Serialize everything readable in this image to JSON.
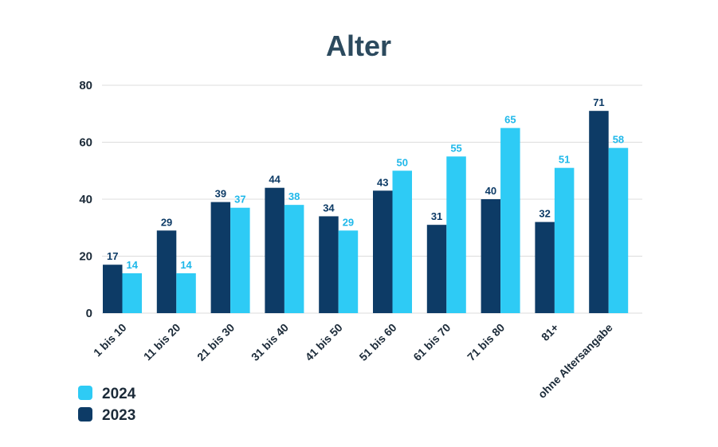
{
  "chart_data": {
    "type": "bar",
    "title": "Alter",
    "categories": [
      "1 bis 10",
      "11 bis 20",
      "21 bis 30",
      "31 bis 40",
      "41 bis 50",
      "51 bis 60",
      "61 bis 70",
      "71 bis 80",
      "81+",
      "ohne Altersangabe"
    ],
    "series": [
      {
        "name": "2023",
        "color": "#0d3b66",
        "values": [
          17,
          29,
          39,
          44,
          34,
          43,
          31,
          40,
          32,
          71
        ]
      },
      {
        "name": "2024",
        "color": "#2ecbf5",
        "values": [
          14,
          14,
          37,
          38,
          29,
          50,
          55,
          65,
          51,
          58
        ]
      }
    ],
    "ylim": [
      0,
      80
    ],
    "yticks": [
      "0",
      "20",
      "40",
      "60",
      "80"
    ],
    "grid": true,
    "legend": {
      "position": "bottom-left",
      "entries": [
        "2024",
        "2023"
      ]
    },
    "colors": {
      "title": "#2c4a5e",
      "text": "#1c2b39",
      "label_2024": "#1fb8ea"
    }
  }
}
